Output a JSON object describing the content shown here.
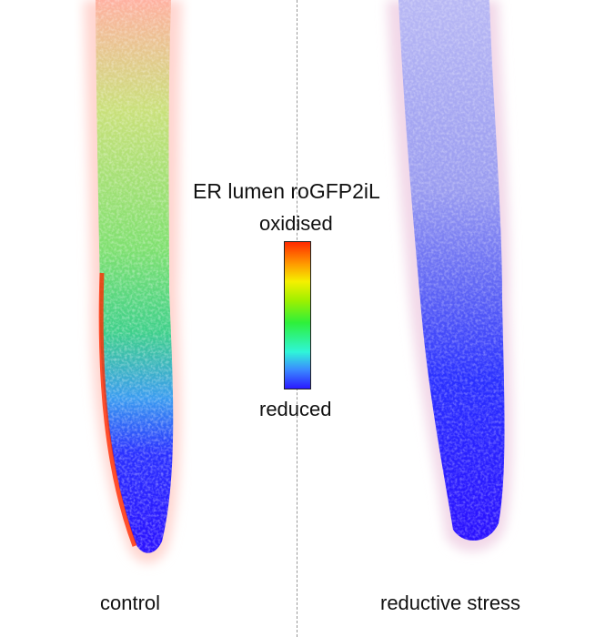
{
  "colorbar": {
    "title": "ER lumen roGFP2iL",
    "top_label": "oxidised",
    "bottom_label": "reduced",
    "colors": [
      "#ff2a00",
      "#ff9a00",
      "#f5f000",
      "#9ef000",
      "#2ef03a",
      "#2ff5d8",
      "#3a8cff",
      "#2a1aff"
    ]
  },
  "panels": [
    {
      "label": "control"
    },
    {
      "label": "reductive stress"
    }
  ]
}
